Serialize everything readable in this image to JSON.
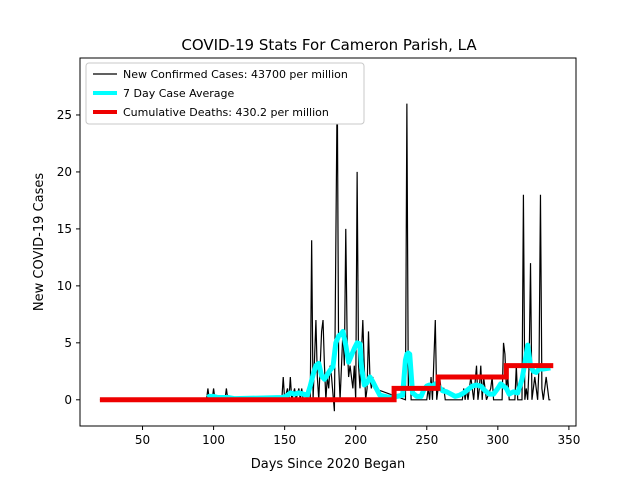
{
  "chart_data": {
    "type": "line",
    "title": "COVID-19 Stats For Cameron Parish, LA",
    "xlabel": "Days Since 2020 Began",
    "ylabel": "New COVID-19 Cases",
    "xlim": [
      6,
      355
    ],
    "ylim": [
      -2.3,
      30
    ],
    "x_ticks": [
      50,
      100,
      150,
      200,
      250,
      300,
      350
    ],
    "y_ticks": [
      0,
      5,
      10,
      15,
      20,
      25
    ],
    "grid": false,
    "legend_position": "upper-left",
    "series": [
      {
        "name": "New Confirmed Cases: 43700 per million",
        "color": "#000000",
        "style": "thin",
        "points": [
          [
            20,
            0
          ],
          [
            95,
            0
          ],
          [
            96,
            1
          ],
          [
            97,
            0
          ],
          [
            99,
            0
          ],
          [
            100,
            1
          ],
          [
            101,
            0
          ],
          [
            108,
            0
          ],
          [
            109,
            1
          ],
          [
            110,
            0
          ],
          [
            148,
            0
          ],
          [
            149,
            2
          ],
          [
            150,
            0
          ],
          [
            152,
            1
          ],
          [
            153,
            0
          ],
          [
            154,
            2
          ],
          [
            155,
            0
          ],
          [
            157,
            1
          ],
          [
            158,
            0
          ],
          [
            160,
            1
          ],
          [
            161,
            0
          ],
          [
            162,
            1
          ],
          [
            163,
            0
          ],
          [
            168,
            0
          ],
          [
            169,
            14
          ],
          [
            170,
            0
          ],
          [
            172,
            7
          ],
          [
            173,
            2
          ],
          [
            174,
            0
          ],
          [
            176,
            6
          ],
          [
            177,
            7
          ],
          [
            178,
            3
          ],
          [
            179,
            0
          ],
          [
            180,
            2
          ],
          [
            181,
            1
          ],
          [
            182,
            3
          ],
          [
            183,
            2
          ],
          [
            185,
            -1
          ],
          [
            187,
            28
          ],
          [
            188,
            3
          ],
          [
            189,
            0
          ],
          [
            190,
            3
          ],
          [
            191,
            6
          ],
          [
            192,
            3
          ],
          [
            193,
            15
          ],
          [
            194,
            5
          ],
          [
            195,
            2
          ],
          [
            196,
            3
          ],
          [
            198,
            1
          ],
          [
            199,
            3
          ],
          [
            200,
            0
          ],
          [
            201,
            20
          ],
          [
            202,
            3
          ],
          [
            203,
            1
          ],
          [
            204,
            4
          ],
          [
            205,
            7
          ],
          [
            206,
            3
          ],
          [
            207,
            0
          ],
          [
            208,
            1
          ],
          [
            209,
            6
          ],
          [
            210,
            2
          ],
          [
            211,
            1
          ],
          [
            212,
            2
          ],
          [
            213,
            1
          ],
          [
            235,
            0
          ],
          [
            236,
            26
          ],
          [
            237,
            1
          ],
          [
            238,
            4
          ],
          [
            239,
            0
          ],
          [
            250,
            0
          ],
          [
            251,
            1
          ],
          [
            252,
            0
          ],
          [
            253,
            2
          ],
          [
            254,
            0
          ],
          [
            256,
            7
          ],
          [
            257,
            0
          ],
          [
            259,
            2
          ],
          [
            260,
            1
          ],
          [
            262,
            1
          ],
          [
            263,
            0
          ],
          [
            275,
            0
          ],
          [
            276,
            1
          ],
          [
            277,
            0
          ],
          [
            278,
            1
          ],
          [
            279,
            0
          ],
          [
            281,
            2
          ],
          [
            282,
            1
          ],
          [
            283,
            0
          ],
          [
            285,
            3
          ],
          [
            286,
            0
          ],
          [
            287,
            1
          ],
          [
            288,
            3
          ],
          [
            289,
            0
          ],
          [
            290,
            2
          ],
          [
            291,
            1
          ],
          [
            292,
            0
          ],
          [
            295,
            1
          ],
          [
            296,
            2
          ],
          [
            297,
            0
          ],
          [
            303,
            0
          ],
          [
            304,
            5
          ],
          [
            305,
            4
          ],
          [
            306,
            1
          ],
          [
            307,
            2
          ],
          [
            308,
            0
          ],
          [
            312,
            0
          ],
          [
            313,
            3
          ],
          [
            314,
            0
          ],
          [
            317,
            0
          ],
          [
            318,
            18
          ],
          [
            319,
            0
          ],
          [
            320,
            1
          ],
          [
            321,
            0
          ],
          [
            322,
            3
          ],
          [
            323,
            12
          ],
          [
            324,
            0
          ],
          [
            325,
            1
          ],
          [
            326,
            2
          ],
          [
            327,
            1
          ],
          [
            328,
            0
          ],
          [
            329,
            3
          ],
          [
            330,
            18
          ],
          [
            331,
            1
          ],
          [
            332,
            0
          ],
          [
            334,
            2
          ],
          [
            335,
            1
          ],
          [
            336,
            0
          ],
          [
            337,
            0
          ]
        ]
      },
      {
        "name": "7 Day Case Average",
        "color": "#00ffff",
        "style": "thick",
        "points": [
          [
            96,
            0.2
          ],
          [
            97,
            0.3
          ],
          [
            100,
            0.3
          ],
          [
            103,
            0.2
          ],
          [
            106,
            0.2
          ],
          [
            110,
            0.2
          ],
          [
            115,
            0.1
          ],
          [
            148,
            0.2
          ],
          [
            151,
            0.3
          ],
          [
            154,
            0.6
          ],
          [
            157,
            0.5
          ],
          [
            160,
            0.6
          ],
          [
            163,
            0.5
          ],
          [
            166,
            0.4
          ],
          [
            168,
            1.2
          ],
          [
            170,
            2.2
          ],
          [
            172,
            3.0
          ],
          [
            174,
            3.2
          ],
          [
            176,
            2.1
          ],
          [
            178,
            1.8
          ],
          [
            180,
            2.2
          ],
          [
            182,
            2.6
          ],
          [
            184,
            2.9
          ],
          [
            186,
            5.0
          ],
          [
            188,
            5.6
          ],
          [
            190,
            5.8
          ],
          [
            191,
            6.0
          ],
          [
            193,
            4.8
          ],
          [
            195,
            3.3
          ],
          [
            197,
            3.9
          ],
          [
            199,
            4.5
          ],
          [
            201,
            5.0
          ],
          [
            203,
            4.9
          ],
          [
            204,
            3.0
          ],
          [
            206,
            1.3
          ],
          [
            208,
            1.5
          ],
          [
            210,
            2.0
          ],
          [
            212,
            1.6
          ],
          [
            214,
            1.1
          ],
          [
            217,
            0.4
          ],
          [
            224,
            0.2
          ],
          [
            229,
            0.3
          ],
          [
            233,
            0.4
          ],
          [
            235,
            3.5
          ],
          [
            236,
            4.0
          ],
          [
            237,
            4.1
          ],
          [
            238,
            4.0
          ],
          [
            240,
            0.6
          ],
          [
            243,
            0.3
          ],
          [
            246,
            0.3
          ],
          [
            248,
            0.9
          ],
          [
            250,
            1.2
          ],
          [
            252,
            1.3
          ],
          [
            254,
            1.1
          ],
          [
            256,
            1.4
          ],
          [
            258,
            1.2
          ],
          [
            261,
            0.8
          ],
          [
            264,
            0.7
          ],
          [
            267,
            0.5
          ],
          [
            270,
            0.3
          ],
          [
            273,
            0.4
          ],
          [
            276,
            0.6
          ],
          [
            279,
            0.9
          ],
          [
            282,
            1.2
          ],
          [
            285,
            1.3
          ],
          [
            288,
            1.2
          ],
          [
            291,
            0.8
          ],
          [
            294,
            0.5
          ],
          [
            297,
            0.5
          ],
          [
            300,
            1.0
          ],
          [
            302,
            1.4
          ],
          [
            304,
            1.2
          ],
          [
            306,
            1.0
          ],
          [
            308,
            0.5
          ],
          [
            311,
            0.7
          ],
          [
            314,
            0.6
          ],
          [
            317,
            1.8
          ],
          [
            319,
            3.2
          ],
          [
            321,
            4.8
          ],
          [
            323,
            3.0
          ],
          [
            325,
            2.5
          ],
          [
            327,
            2.4
          ],
          [
            329,
            2.7
          ],
          [
            332,
            2.7
          ],
          [
            337,
            2.8
          ]
        ]
      },
      {
        "name": "Cumulative Deaths: 430.2 per million",
        "color": "#ee0000",
        "style": "step",
        "points": [
          [
            20,
            0
          ],
          [
            227,
            0
          ],
          [
            227,
            1
          ],
          [
            258,
            1
          ],
          [
            258,
            2
          ],
          [
            306,
            2
          ],
          [
            306,
            3
          ],
          [
            339,
            3
          ]
        ]
      }
    ]
  }
}
